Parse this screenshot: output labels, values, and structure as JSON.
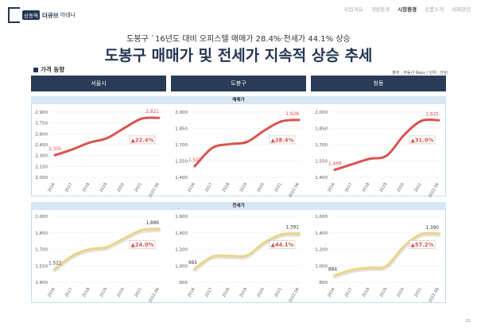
{
  "logo": {
    "badge": "상동역",
    "main": "더큐브",
    "sub": "아테나"
  },
  "nav": [
    "사업개요",
    "개발환경",
    "시장환경",
    "상품소개",
    "세제관련"
  ],
  "nav_active_index": 2,
  "subtitle": "도봉구 `16년도 대비 오피스텔 매매가 28.4%·전세가 44.1% 상승",
  "title": "도봉구 매매가 및 전세가 지속적 상승 추세",
  "section_label": "가격 동향",
  "source": "출처 : 부동산 Reps / 단위 : 만원",
  "columns": [
    "서울시",
    "도봉구",
    "창동"
  ],
  "rows": [
    "매매가",
    "전세가"
  ],
  "page_number": "31",
  "colors": {
    "navy": "#2a3b57",
    "sale_line": "#d9534f",
    "jeonse_line": "#e8d48a",
    "jeonse_shadow": "#c9c5b8",
    "accent_red": "#d9534f",
    "grid": "#eeeeee"
  },
  "chart_data": [
    {
      "type": "line",
      "region": "서울시",
      "metric": "매매가",
      "x": [
        "2016",
        "2017",
        "2018",
        "2019",
        "2020",
        "2021",
        "2022.06"
      ],
      "values": [
        2305,
        2385,
        2480,
        2540,
        2680,
        2810,
        2821
      ],
      "y_ticks": [
        2000,
        2150,
        2300,
        2450,
        2600,
        2750,
        2900
      ],
      "ylim": [
        2000,
        2900
      ],
      "start_label": "2,305",
      "end_label": "2,821",
      "change": "▲22.4%"
    },
    {
      "type": "line",
      "region": "도봉구",
      "metric": "매매가",
      "x": [
        "2016",
        "2017",
        "2018",
        "2019",
        "2020",
        "2021",
        "2022.06"
      ],
      "values": [
        1502,
        1670,
        1705,
        1725,
        1830,
        1915,
        1928
      ],
      "y_ticks": [
        1400,
        1550,
        1700,
        1850,
        2000
      ],
      "ylim": [
        1400,
        2000
      ],
      "start_label": "1,502",
      "end_label": "1,928",
      "change": "▲28.4%"
    },
    {
      "type": "line",
      "region": "창동",
      "metric": "매매가",
      "x": [
        "2016",
        "2017",
        "2018",
        "2019",
        "2020",
        "2021",
        "2022.06"
      ],
      "values": [
        1469,
        1520,
        1570,
        1600,
        1790,
        1920,
        1925
      ],
      "y_ticks": [
        1400,
        1550,
        1700,
        1850,
        2000
      ],
      "ylim": [
        1400,
        2000
      ],
      "start_label": "1,469",
      "end_label": "1,925",
      "change": "▲31.0%"
    },
    {
      "type": "line",
      "region": "서울시",
      "metric": "전세가",
      "x": [
        "2016",
        "2017",
        "2018",
        "2019",
        "2020",
        "2021",
        "2022.06"
      ],
      "values": [
        1521,
        1640,
        1700,
        1720,
        1800,
        1875,
        1886
      ],
      "y_ticks": [
        1400,
        1550,
        1700,
        1850,
        2000
      ],
      "ylim": [
        1400,
        2000
      ],
      "start_label": "1,521",
      "end_label": "1,886",
      "change": "▲24.0%"
    },
    {
      "type": "line",
      "region": "도봉구",
      "metric": "전세가",
      "x": [
        "2016",
        "2017",
        "2018",
        "2019",
        "2020",
        "2021",
        "2022.06"
      ],
      "values": [
        965,
        1110,
        1120,
        1125,
        1280,
        1380,
        1391
      ],
      "y_ticks": [
        800,
        1000,
        1200,
        1400,
        1600
      ],
      "ylim": [
        800,
        1600
      ],
      "start_label": "965",
      "end_label": "1,391",
      "change": "▲44.1%"
    },
    {
      "type": "line",
      "region": "창동",
      "metric": "전세가",
      "x": [
        "2016",
        "2017",
        "2018",
        "2019",
        "2020",
        "2021",
        "2022.06"
      ],
      "values": [
        884,
        950,
        975,
        1000,
        1240,
        1385,
        1390
      ],
      "y_ticks": [
        800,
        1000,
        1200,
        1400,
        1600
      ],
      "ylim": [
        800,
        1600
      ],
      "start_label": "884",
      "end_label": "1,390",
      "change": "▲57.2%"
    }
  ]
}
